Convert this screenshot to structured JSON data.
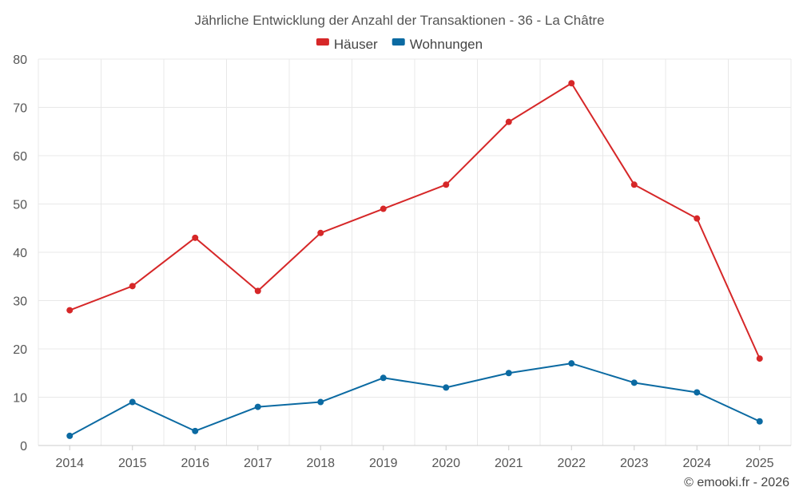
{
  "chart_data": {
    "type": "line",
    "title": "Jährliche Entwicklung der Anzahl der Transaktionen - 36 - La Châtre",
    "categories": [
      "2014",
      "2015",
      "2016",
      "2017",
      "2018",
      "2019",
      "2020",
      "2021",
      "2022",
      "2023",
      "2024",
      "2025"
    ],
    "series": [
      {
        "name": "Häuser",
        "color": "#d62728",
        "values": [
          28,
          33,
          43,
          32,
          44,
          49,
          54,
          67,
          75,
          54,
          47,
          18
        ]
      },
      {
        "name": "Wohnungen",
        "color": "#0b6aa2",
        "values": [
          2,
          9,
          3,
          8,
          9,
          14,
          12,
          15,
          17,
          13,
          11,
          5
        ]
      }
    ],
    "yticks": [
      0,
      10,
      20,
      30,
      40,
      50,
      60,
      70,
      80
    ],
    "ylim": [
      0,
      80
    ],
    "xlabel": "",
    "ylabel": "",
    "grid": true,
    "legend": "top-center"
  },
  "credit": "© emooki.fr - 2026"
}
